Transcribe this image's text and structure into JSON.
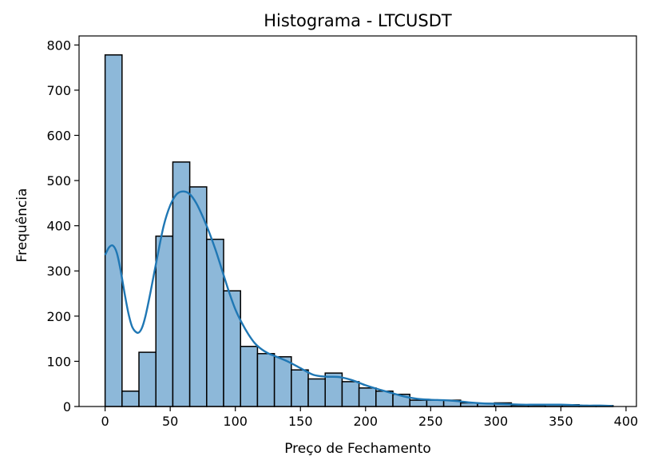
{
  "chart_data": {
    "type": "bar",
    "subtype": "histogram-with-kde",
    "title": "Histograma - LTCUSDT",
    "xlabel": "Preço de Fechamento",
    "ylabel": "Frequência",
    "xlim": [
      -20,
      408
    ],
    "ylim": [
      0,
      820
    ],
    "xticks": [
      0,
      50,
      100,
      150,
      200,
      250,
      300,
      350,
      400
    ],
    "yticks": [
      0,
      100,
      200,
      300,
      400,
      500,
      600,
      700,
      800
    ],
    "grid": false,
    "legend": "none",
    "bar_color": "#8db8d9",
    "edge_color": "#000000",
    "kde_color": "#1f77b4",
    "bins": [
      {
        "x0": 0,
        "x1": 13,
        "count": 778
      },
      {
        "x0": 13,
        "x1": 26,
        "count": 34
      },
      {
        "x0": 26,
        "x1": 39,
        "count": 120
      },
      {
        "x0": 39,
        "x1": 52,
        "count": 377
      },
      {
        "x0": 52,
        "x1": 65,
        "count": 541
      },
      {
        "x0": 65,
        "x1": 78,
        "count": 486
      },
      {
        "x0": 78,
        "x1": 91,
        "count": 370
      },
      {
        "x0": 91,
        "x1": 104,
        "count": 256
      },
      {
        "x0": 104,
        "x1": 117,
        "count": 133
      },
      {
        "x0": 117,
        "x1": 130,
        "count": 117
      },
      {
        "x0": 130,
        "x1": 143,
        "count": 110
      },
      {
        "x0": 143,
        "x1": 156,
        "count": 81
      },
      {
        "x0": 156,
        "x1": 169,
        "count": 61
      },
      {
        "x0": 169,
        "x1": 182,
        "count": 74
      },
      {
        "x0": 182,
        "x1": 195,
        "count": 55
      },
      {
        "x0": 195,
        "x1": 208,
        "count": 41
      },
      {
        "x0": 208,
        "x1": 221,
        "count": 34
      },
      {
        "x0": 221,
        "x1": 234,
        "count": 27
      },
      {
        "x0": 234,
        "x1": 247,
        "count": 14
      },
      {
        "x0": 247,
        "x1": 260,
        "count": 14
      },
      {
        "x0": 260,
        "x1": 273,
        "count": 14
      },
      {
        "x0": 273,
        "x1": 286,
        "count": 8
      },
      {
        "x0": 286,
        "x1": 299,
        "count": 7
      },
      {
        "x0": 299,
        "x1": 312,
        "count": 8
      },
      {
        "x0": 312,
        "x1": 325,
        "count": 3
      },
      {
        "x0": 325,
        "x1": 338,
        "count": 3
      },
      {
        "x0": 338,
        "x1": 351,
        "count": 4
      },
      {
        "x0": 351,
        "x1": 364,
        "count": 4
      },
      {
        "x0": 364,
        "x1": 377,
        "count": 2
      },
      {
        "x0": 377,
        "x1": 390,
        "count": 2
      }
    ],
    "kde": {
      "x": [
        0,
        3,
        6,
        9,
        12,
        15,
        18,
        21,
        25,
        28,
        31,
        35,
        40,
        45,
        50,
        55,
        60,
        65,
        70,
        75,
        80,
        85,
        90,
        95,
        100,
        105,
        110,
        115,
        120,
        125,
        130,
        140,
        150,
        160,
        170,
        180,
        190,
        200,
        210,
        220,
        230,
        240,
        250,
        260,
        270,
        280,
        290,
        300,
        310,
        320,
        330,
        340,
        350,
        360,
        370,
        380,
        390
      ],
      "y": [
        335,
        352,
        356,
        340,
        300,
        250,
        205,
        175,
        163,
        172,
        200,
        255,
        330,
        400,
        445,
        470,
        476,
        470,
        450,
        420,
        385,
        345,
        300,
        255,
        215,
        185,
        160,
        140,
        127,
        118,
        112,
        100,
        85,
        70,
        66,
        65,
        58,
        47,
        38,
        30,
        22,
        17,
        15,
        14,
        12,
        9,
        7,
        6,
        5,
        4,
        4,
        4,
        4,
        3,
        2,
        2,
        1
      ]
    }
  }
}
